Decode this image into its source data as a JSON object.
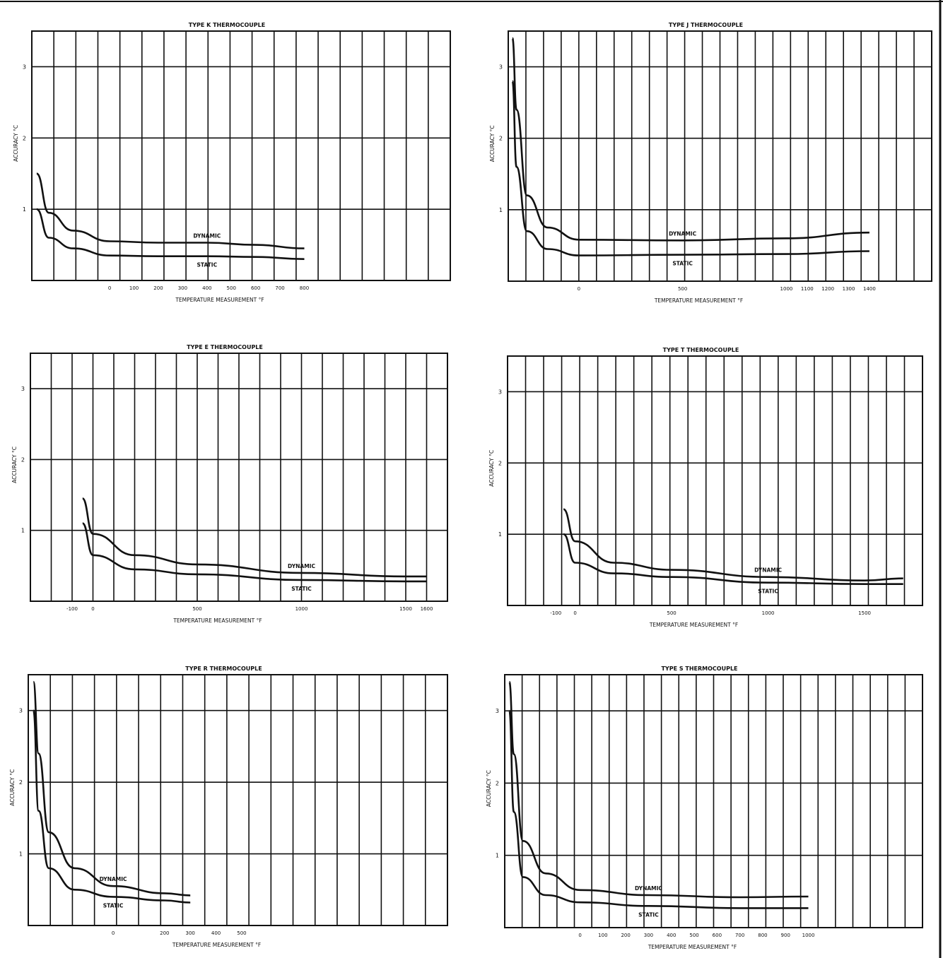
{
  "document": {
    "note": "",
    "ink_color": "#111111",
    "paper_color": "#ffffff"
  },
  "chart_data": [
    {
      "type": "line",
      "title": "TYPE K THERMOCOUPLE",
      "xlabel": "TEMPERATURE MEASUREMENT °F",
      "ylabel": "ACCURACY °C",
      "x_ticks": [
        "0",
        "100",
        "200",
        "300",
        "400",
        "500",
        "600",
        "700",
        "800"
      ],
      "y_ticks": [
        "3",
        "2",
        "1"
      ],
      "ylim": [
        0,
        3.5
      ],
      "series": [
        {
          "name": "DYNAMIC",
          "x": [
            -300,
            -250,
            -150,
            0,
            200,
            400,
            600,
            800
          ],
          "y": [
            1.5,
            0.95,
            0.7,
            0.55,
            0.53,
            0.53,
            0.5,
            0.45
          ]
        },
        {
          "name": "STATIC",
          "x": [
            -300,
            -250,
            -150,
            0,
            200,
            400,
            600,
            800
          ],
          "y": [
            1.0,
            0.6,
            0.45,
            0.35,
            0.34,
            0.34,
            0.33,
            0.3
          ]
        }
      ]
    },
    {
      "type": "line",
      "title": "TYPE J THERMOCOUPLE",
      "xlabel": "TEMPERATURE MEASUREMENT °F",
      "ylabel": "ACCURACY °C",
      "x_ticks": [
        "0",
        "500",
        "1000",
        "1100",
        "1200",
        "1300",
        "1400"
      ],
      "y_ticks": [
        "3",
        "2",
        "1"
      ],
      "ylim": [
        0,
        3.5
      ],
      "series": [
        {
          "name": "DYNAMIC",
          "x": [
            -320,
            -300,
            -250,
            -150,
            0,
            500,
            1000,
            1400
          ],
          "y": [
            3.4,
            2.4,
            1.2,
            0.75,
            0.58,
            0.57,
            0.6,
            0.68
          ]
        },
        {
          "name": "STATIC",
          "x": [
            -320,
            -300,
            -250,
            -150,
            0,
            500,
            1000,
            1400
          ],
          "y": [
            2.8,
            1.6,
            0.7,
            0.45,
            0.36,
            0.37,
            0.38,
            0.42
          ]
        }
      ]
    },
    {
      "type": "line",
      "title": "TYPE E THERMOCOUPLE",
      "xlabel": "TEMPERATURE MEASUREMENT °F",
      "ylabel": "ACCURACY °C",
      "x_ticks": [
        "-100",
        "0",
        "500",
        "1000",
        "1500",
        "1600"
      ],
      "y_ticks": [
        "3",
        "2",
        "1"
      ],
      "ylim": [
        0,
        3.5
      ],
      "series": [
        {
          "name": "DYNAMIC",
          "x": [
            -50,
            0,
            200,
            500,
            1000,
            1500,
            1600
          ],
          "y": [
            1.45,
            0.95,
            0.65,
            0.52,
            0.4,
            0.35,
            0.35
          ]
        },
        {
          "name": "STATIC",
          "x": [
            -50,
            0,
            200,
            500,
            1000,
            1500,
            1600
          ],
          "y": [
            1.1,
            0.65,
            0.45,
            0.38,
            0.3,
            0.28,
            0.28
          ]
        }
      ]
    },
    {
      "type": "line",
      "title": "TYPE T THERMOCOUPLE",
      "xlabel": "TEMPERATURE MEASUREMENT °F",
      "ylabel": "ACCURACY °C",
      "x_ticks": [
        "-100",
        "0",
        "500",
        "1000",
        "1500"
      ],
      "y_ticks": [
        "3",
        "2",
        "1"
      ],
      "ylim": [
        0,
        3.5
      ],
      "series": [
        {
          "name": "DYNAMIC",
          "x": [
            -60,
            0,
            200,
            500,
            1000,
            1500,
            1700
          ],
          "y": [
            1.35,
            0.9,
            0.6,
            0.5,
            0.4,
            0.35,
            0.38
          ]
        },
        {
          "name": "STATIC",
          "x": [
            -60,
            0,
            200,
            500,
            1000,
            1500,
            1700
          ],
          "y": [
            1.0,
            0.6,
            0.45,
            0.4,
            0.32,
            0.3,
            0.3
          ]
        }
      ]
    },
    {
      "type": "line",
      "title": "TYPE R THERMOCOUPLE",
      "xlabel": "TEMPERATURE MEASUREMENT °F",
      "ylabel": "ACCURACY °C",
      "x_ticks": [
        "0",
        "200",
        "300",
        "400",
        "500"
      ],
      "y_ticks": [
        "3",
        "2",
        "1"
      ],
      "ylim": [
        0,
        3.5
      ],
      "series": [
        {
          "name": "DYNAMIC",
          "x": [
            -310,
            -290,
            -250,
            -150,
            0,
            200,
            300
          ],
          "y": [
            3.4,
            2.4,
            1.3,
            0.8,
            0.55,
            0.45,
            0.42
          ]
        },
        {
          "name": "STATIC",
          "x": [
            -310,
            -290,
            -250,
            -150,
            0,
            200,
            300
          ],
          "y": [
            3.0,
            1.6,
            0.8,
            0.5,
            0.4,
            0.35,
            0.32
          ]
        }
      ]
    },
    {
      "type": "line",
      "title": "TYPE S THERMOCOUPLE",
      "xlabel": "TEMPERATURE MEASUREMENT °F",
      "ylabel": "ACCURACY °C",
      "x_ticks": [
        "0",
        "100",
        "200",
        "300",
        "400",
        "500",
        "600",
        "700",
        "800",
        "900",
        "1000"
      ],
      "y_ticks": [
        "3",
        "2",
        "1"
      ],
      "ylim": [
        0,
        3.5
      ],
      "series": [
        {
          "name": "DYNAMIC",
          "x": [
            -310,
            -290,
            -250,
            -150,
            0,
            300,
            700,
            1000
          ],
          "y": [
            3.4,
            2.4,
            1.2,
            0.75,
            0.52,
            0.45,
            0.42,
            0.43
          ]
        },
        {
          "name": "STATIC",
          "x": [
            -310,
            -290,
            -250,
            -150,
            0,
            300,
            700,
            1000
          ],
          "y": [
            3.0,
            1.6,
            0.7,
            0.45,
            0.35,
            0.3,
            0.27,
            0.27
          ]
        }
      ]
    }
  ]
}
